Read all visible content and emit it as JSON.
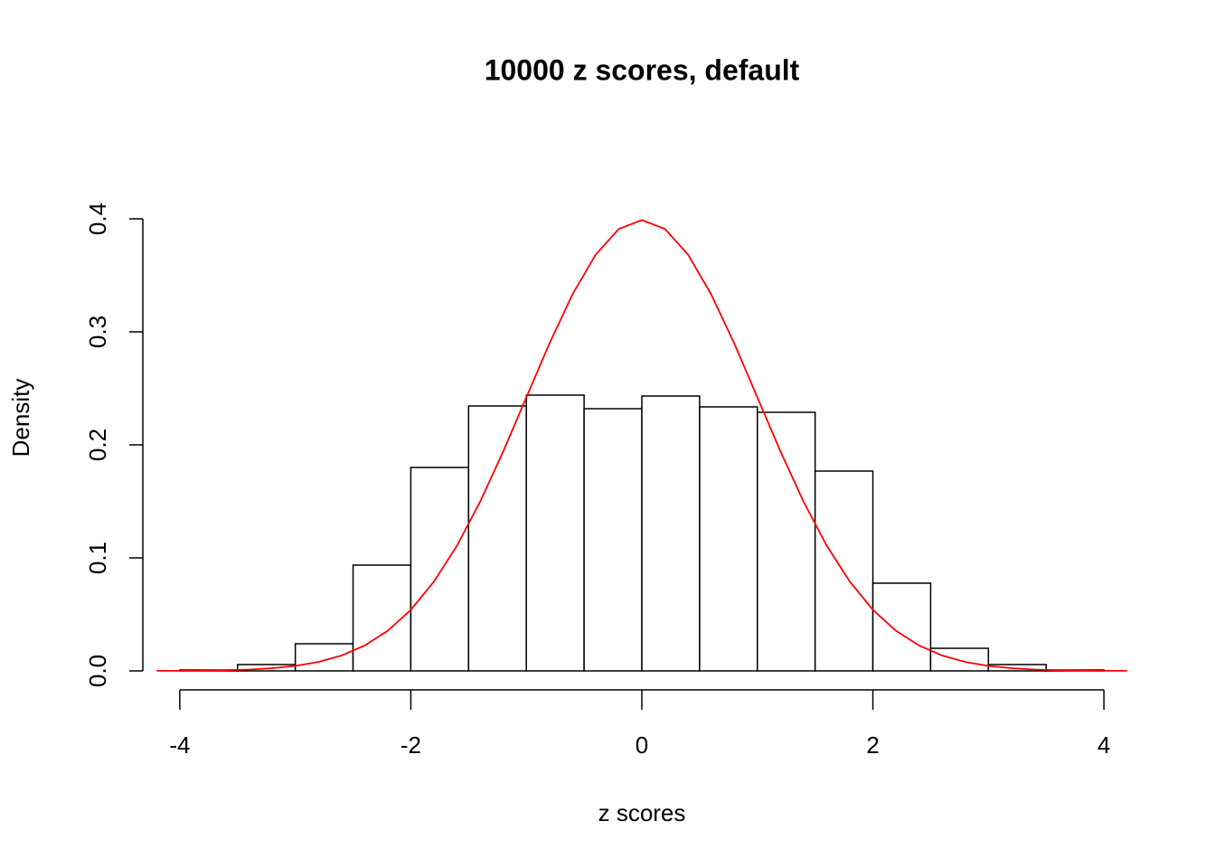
{
  "chart_data": {
    "type": "histogram",
    "title": "10000 z scores, default",
    "x_label": "z scores",
    "y_label": "Density",
    "bins": [
      -4,
      -3.5,
      -3,
      -2.5,
      -2,
      -1.5,
      -1,
      -0.5,
      0,
      0.5,
      1,
      1.5,
      2,
      2.5,
      3,
      3.5,
      4
    ],
    "values": [
      0.0008,
      0.0056,
      0.024,
      0.0936,
      0.18,
      0.2344,
      0.244,
      0.232,
      0.2432,
      0.2336,
      0.2288,
      0.1768,
      0.0776,
      0.02,
      0.0056,
      0.0008
    ],
    "color": "#ffffff",
    "edge_color": "#000000",
    "lines": [
      {
        "color": "#ff0000",
        "x": [
          -4.2,
          -4.0,
          -3.8,
          -3.6,
          -3.4,
          -3.2,
          -3.0,
          -2.8,
          -2.6,
          -2.4,
          -2.2,
          -2.0,
          -1.8,
          -1.6,
          -1.4,
          -1.2,
          -1.0,
          -0.8,
          -0.6,
          -0.4,
          -0.2,
          0,
          0.2,
          0.4,
          0.6,
          0.8,
          1.0,
          1.2,
          1.4,
          1.6,
          1.8,
          2.0,
          2.2,
          2.4,
          2.6,
          2.8,
          3.0,
          3.2,
          3.4,
          3.6,
          3.8,
          4.0,
          4.2
        ],
        "y": [
          0.0001,
          0.0001,
          0.0003,
          0.0006,
          0.0012,
          0.0024,
          0.0044,
          0.0079,
          0.0136,
          0.0224,
          0.0355,
          0.054,
          0.079,
          0.1109,
          0.1497,
          0.1942,
          0.242,
          0.2897,
          0.3332,
          0.3683,
          0.391,
          0.3989,
          0.391,
          0.3683,
          0.3332,
          0.2897,
          0.242,
          0.1942,
          0.1497,
          0.1109,
          0.079,
          0.054,
          0.0355,
          0.0224,
          0.0136,
          0.0079,
          0.0044,
          0.0024,
          0.0012,
          0.0006,
          0.0003,
          0.0001,
          0.0001
        ]
      }
    ],
    "xlim": [
      -4.32,
      4.32
    ],
    "ylim": [
      -0.016,
      0.416
    ],
    "xticks": [
      -4,
      -2,
      0,
      2,
      4
    ],
    "yticks": [
      {
        "value": 0,
        "label": "0.0"
      },
      0.1,
      0.2,
      0.3,
      0.4
    ],
    "grid": false
  }
}
